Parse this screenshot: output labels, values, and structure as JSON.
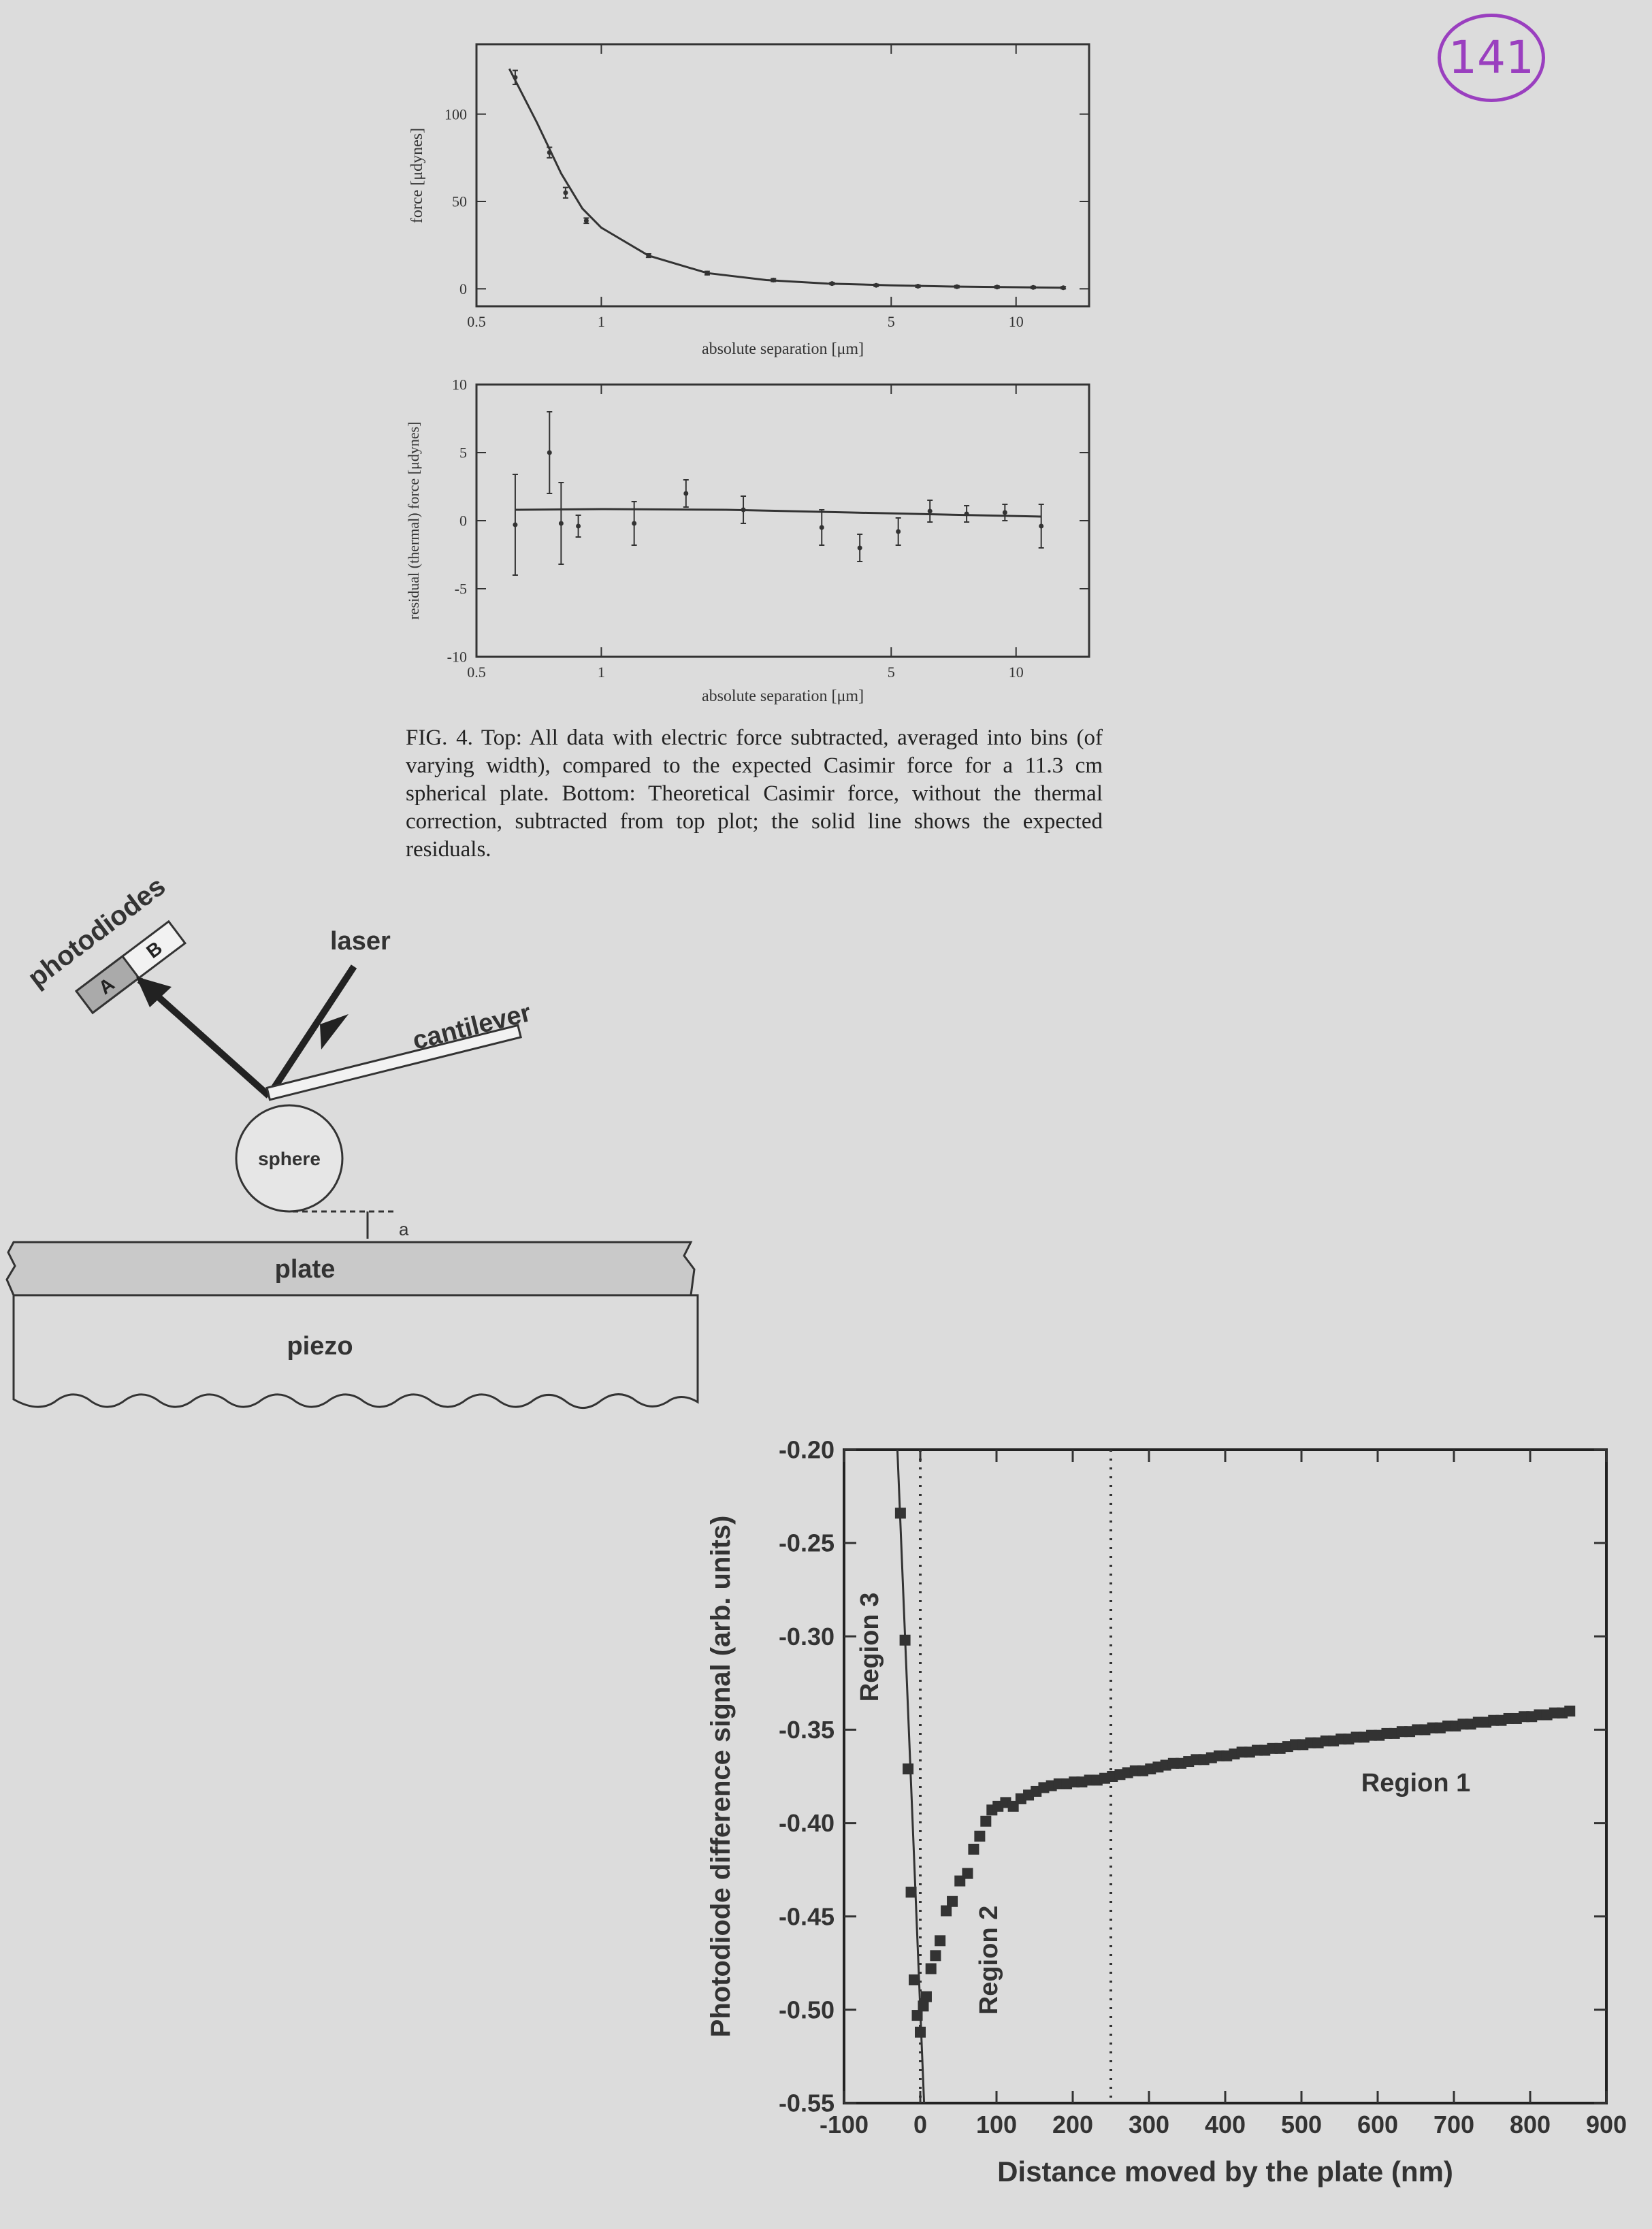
{
  "page_number": "141",
  "figure_caption": "FIG. 4.  Top: All data with electric force subtracted, averaged into bins (of varying width), compared to the expected Casimir force for a 11.3 cm spherical plate. Bottom: Theoretical Casimir force, without the thermal correction, subtracted from top plot; the solid line shows the expected residuals.",
  "diagram": {
    "photodiodes": "photodiodes",
    "segment_a": "A",
    "segment_b": "B",
    "laser": "laser",
    "cantilever": "cantilever",
    "sphere": "sphere",
    "gap": "a",
    "plate": "plate",
    "piezo": "piezo"
  },
  "chart_data": [
    {
      "type": "scatter",
      "xlabel": "absolute separation [μm]",
      "ylabel": "force [μdynes]",
      "xscale": "log",
      "xlim": [
        0.5,
        15
      ],
      "ylim": [
        -10,
        140
      ],
      "xticks": [
        "0.5",
        "1",
        "5",
        "10"
      ],
      "yticks": [
        "0",
        "50",
        "100"
      ],
      "series": [
        {
          "points": [
            [
              0.62,
              121
            ],
            [
              0.75,
              78
            ],
            [
              0.82,
              55
            ],
            [
              0.92,
              39
            ],
            [
              1.3,
              19
            ],
            [
              1.8,
              9
            ],
            [
              2.6,
              5
            ],
            [
              3.6,
              3
            ],
            [
              4.6,
              2
            ],
            [
              5.8,
              1.5
            ],
            [
              7.2,
              1.2
            ],
            [
              9,
              1.0
            ],
            [
              11,
              0.8
            ],
            [
              13,
              0.6
            ]
          ],
          "errors": [
            4,
            3,
            3,
            1.5,
            1,
            1,
            0.8,
            0.6,
            0.6,
            0.6,
            0.6,
            0.6,
            0.6,
            0.6
          ]
        }
      ],
      "curve": [
        [
          0.6,
          126
        ],
        [
          0.7,
          95
        ],
        [
          0.8,
          66
        ],
        [
          0.9,
          46
        ],
        [
          1.0,
          35
        ],
        [
          1.3,
          19
        ],
        [
          1.8,
          9
        ],
        [
          2.5,
          5
        ],
        [
          3.5,
          3
        ],
        [
          5,
          2
        ],
        [
          7,
          1.3
        ],
        [
          10,
          0.9
        ],
        [
          13,
          0.6
        ]
      ]
    },
    {
      "type": "scatter",
      "xlabel": "absolute separation [μm]",
      "ylabel": "residual (thermal) force [μdynes]",
      "xscale": "log",
      "xlim": [
        0.5,
        15
      ],
      "ylim": [
        -10,
        10
      ],
      "xticks": [
        "0.5",
        "1",
        "5",
        "10"
      ],
      "yticks": [
        "-10",
        "-5",
        "0",
        "5",
        "10"
      ],
      "series": [
        {
          "points": [
            [
              0.62,
              -0.3
            ],
            [
              0.75,
              5
            ],
            [
              0.8,
              -0.2
            ],
            [
              0.88,
              -0.4
            ],
            [
              1.2,
              -0.2
            ],
            [
              1.6,
              2
            ],
            [
              2.2,
              0.8
            ],
            [
              3.4,
              -0.5
            ],
            [
              4.2,
              -2
            ],
            [
              5.2,
              -0.8
            ],
            [
              6.2,
              0.7
            ],
            [
              7.6,
              0.5
            ],
            [
              9.4,
              0.6
            ],
            [
              11.5,
              -0.4
            ]
          ],
          "errors": [
            3.7,
            3,
            3,
            0.8,
            1.6,
            1,
            1,
            1.3,
            1,
            1,
            0.8,
            0.6,
            0.6,
            1.6
          ]
        }
      ],
      "curve": [
        [
          0.62,
          0.8
        ],
        [
          1.0,
          0.85
        ],
        [
          2.0,
          0.8
        ],
        [
          4.0,
          0.6
        ],
        [
          8.0,
          0.4
        ],
        [
          11.5,
          0.3
        ]
      ]
    },
    {
      "type": "scatter",
      "xlabel": "Distance moved by the plate (nm)",
      "ylabel": "Photodiode difference signal (arb. units)",
      "xlim": [
        -100,
        900
      ],
      "ylim": [
        -0.55,
        -0.2
      ],
      "xticks": [
        "-100",
        "0",
        "100",
        "200",
        "300",
        "400",
        "500",
        "600",
        "700",
        "800",
        "900"
      ],
      "yticks": [
        "-0.20",
        "-0.25",
        "-0.30",
        "-0.35",
        "-0.40",
        "-0.45",
        "-0.50",
        "-0.55"
      ],
      "annotations": [
        "Region 3",
        "Region 2",
        "Region 1"
      ],
      "boundary_line_x": [
        0,
        250
      ],
      "steep_line": [
        [
          -30,
          -0.2
        ],
        [
          5,
          -0.55
        ]
      ],
      "series": [
        {
          "points": [
            [
              -26,
              -0.234
            ],
            [
              -20,
              -0.302
            ],
            [
              -16,
              -0.371
            ],
            [
              -12,
              -0.437
            ],
            [
              -8,
              -0.484
            ],
            [
              -4,
              -0.503
            ],
            [
              0,
              -0.512
            ],
            [
              4,
              -0.498
            ],
            [
              8,
              -0.493
            ],
            [
              14,
              -0.478
            ],
            [
              20,
              -0.471
            ],
            [
              26,
              -0.463
            ],
            [
              34,
              -0.447
            ],
            [
              42,
              -0.442
            ],
            [
              52,
              -0.431
            ],
            [
              62,
              -0.427
            ],
            [
              70,
              -0.414
            ],
            [
              78,
              -0.407
            ],
            [
              86,
              -0.399
            ],
            [
              94,
              -0.393
            ],
            [
              102,
              -0.391
            ],
            [
              112,
              -0.389
            ],
            [
              122,
              -0.391
            ],
            [
              132,
              -0.387
            ],
            [
              142,
              -0.385
            ],
            [
              152,
              -0.383
            ],
            [
              162,
              -0.381
            ],
            [
              172,
              -0.38
            ],
            [
              182,
              -0.379
            ],
            [
              192,
              -0.379
            ],
            [
              202,
              -0.378
            ],
            [
              212,
              -0.378
            ],
            [
              222,
              -0.377
            ],
            [
              232,
              -0.377
            ],
            [
              242,
              -0.376
            ],
            [
              252,
              -0.375
            ],
            [
              262,
              -0.374
            ],
            [
              272,
              -0.373
            ],
            [
              282,
              -0.372
            ],
            [
              292,
              -0.372
            ],
            [
              302,
              -0.371
            ],
            [
              312,
              -0.37
            ],
            [
              322,
              -0.369
            ],
            [
              332,
              -0.368
            ],
            [
              342,
              -0.368
            ],
            [
              352,
              -0.367
            ],
            [
              362,
              -0.366
            ],
            [
              372,
              -0.366
            ],
            [
              382,
              -0.365
            ],
            [
              392,
              -0.364
            ],
            [
              402,
              -0.364
            ],
            [
              412,
              -0.363
            ],
            [
              422,
              -0.362
            ],
            [
              432,
              -0.362
            ],
            [
              442,
              -0.361
            ],
            [
              452,
              -0.361
            ],
            [
              462,
              -0.36
            ],
            [
              472,
              -0.36
            ],
            [
              482,
              -0.359
            ],
            [
              492,
              -0.358
            ],
            [
              502,
              -0.358
            ],
            [
              512,
              -0.357
            ],
            [
              522,
              -0.357
            ],
            [
              532,
              -0.356
            ],
            [
              542,
              -0.356
            ],
            [
              552,
              -0.355
            ],
            [
              562,
              -0.355
            ],
            [
              572,
              -0.354
            ],
            [
              582,
              -0.354
            ],
            [
              592,
              -0.353
            ],
            [
              602,
              -0.353
            ],
            [
              612,
              -0.352
            ],
            [
              622,
              -0.352
            ],
            [
              632,
              -0.351
            ],
            [
              642,
              -0.351
            ],
            [
              652,
              -0.35
            ],
            [
              662,
              -0.35
            ],
            [
              672,
              -0.349
            ],
            [
              682,
              -0.349
            ],
            [
              692,
              -0.348
            ],
            [
              702,
              -0.348
            ],
            [
              712,
              -0.347
            ],
            [
              722,
              -0.347
            ],
            [
              732,
              -0.346
            ],
            [
              742,
              -0.346
            ],
            [
              752,
              -0.345
            ],
            [
              762,
              -0.345
            ],
            [
              772,
              -0.344
            ],
            [
              782,
              -0.344
            ],
            [
              792,
              -0.343
            ],
            [
              802,
              -0.343
            ],
            [
              812,
              -0.342
            ],
            [
              822,
              -0.342
            ],
            [
              832,
              -0.341
            ],
            [
              842,
              -0.341
            ],
            [
              852,
              -0.34
            ]
          ]
        }
      ]
    }
  ]
}
